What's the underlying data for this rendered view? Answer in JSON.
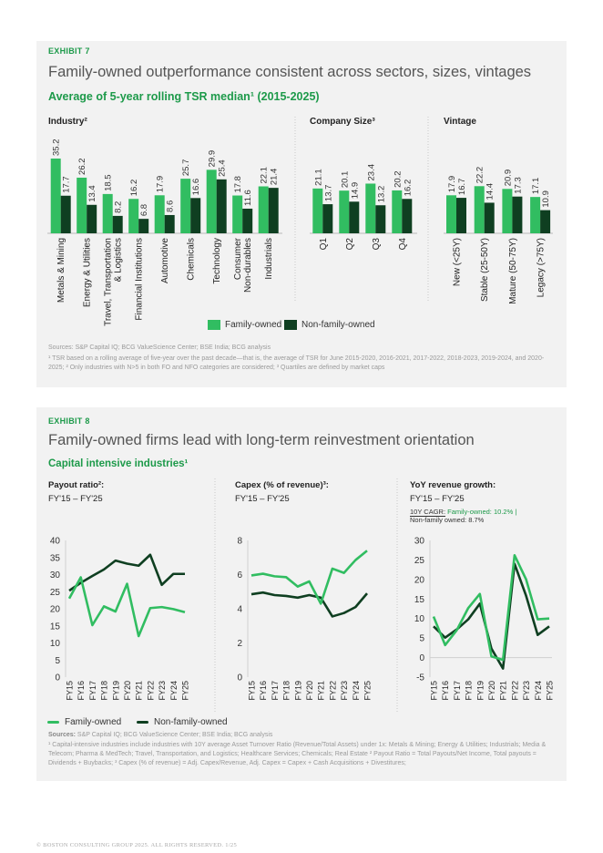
{
  "colors": {
    "family": "#31bd61",
    "nonfamily": "#0f3f21",
    "accent": "#1d9a4a"
  },
  "exhibit7": {
    "label": "EXHIBIT 7",
    "title": "Family-owned outperformance consistent across sectors, sizes, vintages",
    "subtitle": "Average of 5-year rolling TSR median¹ (2015-2025)",
    "legend": {
      "family": "Family-owned",
      "nonfamily": "Non-family-owned"
    },
    "sources_label": "Sources:",
    "sources": " S&P Capital IQ; BCG ValueScience Center; BSE India; BCG analysis",
    "footnote": "¹ TSR based on a rolling average of five-year over the past decade—that is, the average of TSR for June 2015-2020, 2016-2021, 2017-2022, 2018-2023, 2019-2024, and 2020-2025; ² Only industries with N>5 in both FO and NFO categories are considered; ³ Quartiles are defined by market caps"
  },
  "exhibit8": {
    "label": "EXHIBIT 8",
    "title": "Family-owned firms lead with long-term reinvestment orientation",
    "subtitle": "Capital intensive industries¹",
    "legend": {
      "family": "Family-owned",
      "nonfamily": "Non-family-owned"
    },
    "cagr": {
      "label": "10Y CAGR:",
      "family": " Family-owned: 10.2% |",
      "nonfamily": "Non-family owned: 8.7%"
    },
    "sources_label": "Sources:",
    "sources": " S&P Capital IQ; BCG ValueScience Center; BSE India; BCG analysis",
    "footnote": "¹ Capital-intensive industries include industries with 10Y average Asset Turnover Ratio (Revenue/Total Assets) under 1x: Metals & Mining; Energy & Utilities; Industrials; Media & Telecom; Pharma & MedTech; Travel, Transportation, and Logistics; Healthcare Services; Chemicals; Real Estate ² Payout Ratio = Total Payouts/Net Income, Total payouts = Dividends + Buybacks; ³ Capex (% of revenue) = Adj. Capex/Revenue, Adj. Capex = Capex + Cash Acquisitions + Divestitures;"
  },
  "footer": "© BOSTON CONSULTING GROUP 2025. ALL RIGHTS RESERVED. 1/25",
  "chart_data": [
    {
      "type": "bar",
      "title": "Industry²",
      "categories": [
        [
          "Metals & Mining"
        ],
        [
          "Energy & Utilities"
        ],
        [
          "Travel, Transportation",
          "& Logistics"
        ],
        [
          "Financial Institutions"
        ],
        [
          "Automotive"
        ],
        [
          "Chemicals"
        ],
        [
          "Technology"
        ],
        [
          "Consumer",
          "Non-durables"
        ],
        [
          "Industrials"
        ]
      ],
      "series": [
        {
          "name": "Family-owned",
          "values": [
            35.2,
            26.2,
            18.5,
            16.2,
            17.9,
            25.7,
            29.9,
            17.8,
            22.1
          ]
        },
        {
          "name": "Non-family-owned",
          "values": [
            17.7,
            13.4,
            8.2,
            6.8,
            8.6,
            16.6,
            25.4,
            11.6,
            21.4
          ]
        }
      ]
    },
    {
      "type": "bar",
      "title": "Company Size³",
      "categories": [
        [
          "Q1"
        ],
        [
          "Q2"
        ],
        [
          "Q3"
        ],
        [
          "Q4"
        ]
      ],
      "series": [
        {
          "name": "Family-owned",
          "values": [
            21.1,
            20.1,
            23.4,
            20.2
          ]
        },
        {
          "name": "Non-family-owned",
          "values": [
            13.7,
            14.9,
            13.2,
            16.2
          ]
        }
      ]
    },
    {
      "type": "bar",
      "title": "Vintage",
      "categories": [
        [
          "New (<25Y)"
        ],
        [
          "Stable (25-50Y)"
        ],
        [
          "Mature (50-75Y)"
        ],
        [
          "Legacy (>75Y)"
        ]
      ],
      "series": [
        {
          "name": "Family-owned",
          "values": [
            17.9,
            22.2,
            20.9,
            17.1
          ]
        },
        {
          "name": "Non-family-owned",
          "values": [
            16.7,
            14.4,
            17.3,
            10.9
          ]
        }
      ]
    },
    {
      "type": "line",
      "title": "Payout ratio²:",
      "subtitle": "FY'15 – FY'25",
      "x": [
        "FY15",
        "FY16",
        "FY17",
        "FY18",
        "FY19",
        "FY20",
        "FY21",
        "FY22",
        "FY23",
        "FY24",
        "FY25"
      ],
      "ylim": [
        0,
        40
      ],
      "yticks": [
        0,
        5,
        10,
        15,
        20,
        25,
        30,
        35,
        40
      ],
      "series": [
        {
          "name": "Family-owned",
          "values": [
            23,
            29.2,
            15.2,
            20.7,
            19.2,
            27.3,
            12,
            20.2,
            20.5,
            19.9,
            19
          ]
        },
        {
          "name": "Non-family-owned",
          "values": [
            25.3,
            27.6,
            29.6,
            31.5,
            34.1,
            33.2,
            32.6,
            35.8,
            27,
            30.2,
            30.2
          ]
        }
      ]
    },
    {
      "type": "line",
      "title": "Capex (% of revenue)³:",
      "subtitle": "FY'15 – FY'25",
      "x": [
        "FY15",
        "FY16",
        "FY17",
        "FY18",
        "FY19",
        "FY20",
        "FY21",
        "FY22",
        "FY23",
        "FY24",
        "FY25"
      ],
      "ylim": [
        0,
        8
      ],
      "yticks": [
        0,
        2,
        4,
        6,
        8
      ],
      "series": [
        {
          "name": "Family-owned",
          "values": [
            5.95,
            6.05,
            5.9,
            5.85,
            5.3,
            5.6,
            4.3,
            6.35,
            6.1,
            6.85,
            7.4
          ]
        },
        {
          "name": "Non-family-owned",
          "values": [
            4.85,
            4.95,
            4.8,
            4.75,
            4.65,
            4.8,
            4.65,
            3.55,
            3.75,
            4.1,
            4.9
          ]
        }
      ]
    },
    {
      "type": "line",
      "title": "YoY revenue growth:",
      "subtitle": "FY'15 – FY'25",
      "x": [
        "FY15",
        "FY16",
        "FY17",
        "FY18",
        "FY19",
        "FY20",
        "FY21",
        "FY22",
        "FY23",
        "FY24",
        "FY25"
      ],
      "ylim": [
        -5,
        30
      ],
      "yticks": [
        -5,
        0,
        5,
        10,
        15,
        20,
        25,
        30
      ],
      "series": [
        {
          "name": "Family-owned",
          "values": [
            10.5,
            3.2,
            7,
            12.7,
            16.3,
            0.3,
            -0.6,
            26.2,
            20,
            9.8,
            10
          ]
        },
        {
          "name": "Non-family-owned",
          "values": [
            8,
            5.1,
            7.2,
            9.8,
            13.8,
            2.3,
            -2.8,
            24,
            15.8,
            5.8,
            8
          ]
        }
      ]
    }
  ]
}
